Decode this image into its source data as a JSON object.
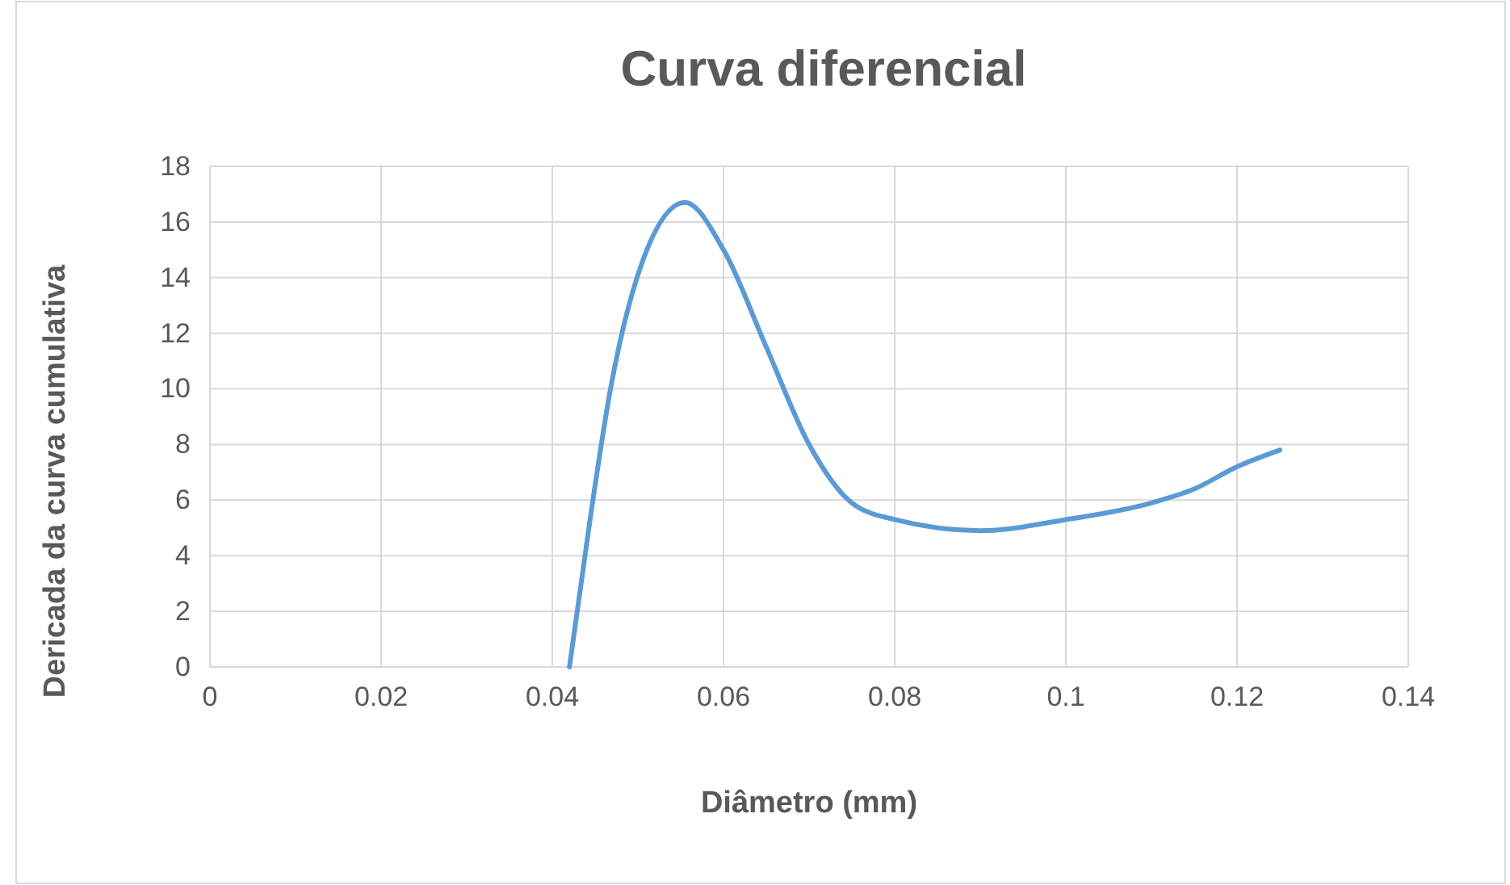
{
  "chart_data": {
    "type": "line",
    "title": "Curva  diferencial",
    "xlabel": "Diâmetro (mm)",
    "ylabel": "Dericada da curva cumulativa",
    "x": [
      0.042,
      0.0445,
      0.0468,
      0.05,
      0.0555,
      0.06,
      0.065,
      0.07,
      0.075,
      0.08,
      0.09,
      0.1,
      0.11,
      0.115,
      0.12,
      0.125
    ],
    "series": [
      {
        "color": "#5b9bd5",
        "values": [
          0,
          5.5,
          10,
          14.1,
          16.7,
          15,
          11.5,
          8,
          5.9,
          5.3,
          4.9,
          5.3,
          5.9,
          6.4,
          7.2,
          7.8
        ]
      }
    ],
    "xlim": [
      0,
      0.14
    ],
    "xticks": [
      0,
      0.02,
      0.04,
      0.06,
      0.08,
      0.1,
      0.12,
      0.14
    ],
    "ylim": [
      0,
      18
    ],
    "yticks": [
      0,
      2,
      4,
      6,
      8,
      10,
      12,
      14,
      16,
      18
    ],
    "grid": true,
    "legend": false,
    "marker": "none",
    "line_style": "solid"
  }
}
